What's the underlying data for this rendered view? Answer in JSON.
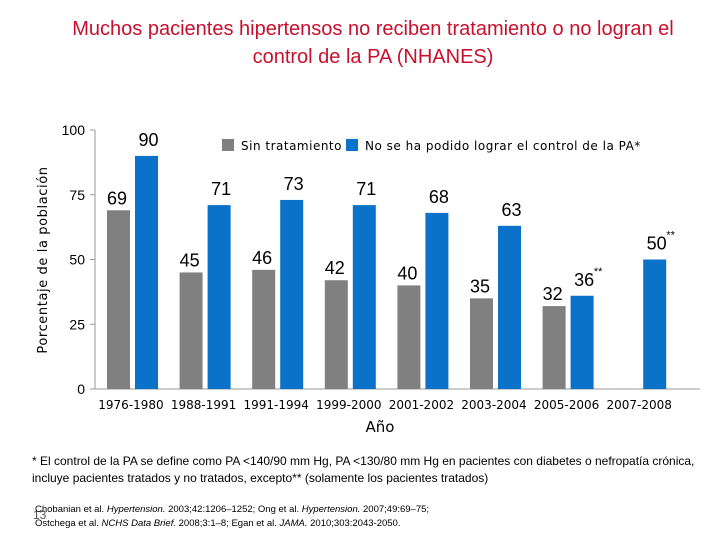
{
  "title": "Muchos pacientes hipertensos no reciben tratamiento o no logran el control de la PA (NHANES)",
  "footnote": "* El control de la PA se define como PA <140/90 mm Hg, PA <130/80 mm Hg en pacientes con diabetes o nefropatía crónica, incluye pacientes tratados y no tratados, excepto** (solamente los pacientes tratados)",
  "references": {
    "r1_authors": "Chobanian et al. ",
    "r1_journal": "Hypertension.",
    "r1_rest": " 2003;42:1206–1252; Ong et al. ",
    "r2_journal": "Hypertension.",
    "r2_rest": " 2007;49:69–75;",
    "r3_authors": "Ostchega et al. ",
    "r3_journal": "NCHS Data Brief.",
    "r3_rest": " 2008;3:1–8; Egan et al. ",
    "r4_journal": "JAMA.",
    "r4_rest": " 2010;303:2043-2050."
  },
  "slide_number": "13",
  "chart_data": {
    "type": "bar",
    "ylabel": "Porcentaje de la población",
    "xlabel": "Año",
    "ylim": [
      0,
      100
    ],
    "yticks": [
      0,
      25,
      50,
      75,
      100
    ],
    "categories": [
      "1976-1980",
      "1988-1991",
      "1991-1994",
      "1999-2000",
      "2001-2002",
      "2003-2004",
      "2005-2006",
      "2007-2008"
    ],
    "series": [
      {
        "name": "Sin tratamiento",
        "color": "#808080",
        "values": [
          69,
          45,
          46,
          42,
          40,
          35,
          32,
          null
        ],
        "labels": [
          "69",
          "45",
          "46",
          "42",
          "40",
          "35",
          "32",
          ""
        ]
      },
      {
        "name": "No se ha podido lograr el control de la PA*",
        "color": "#0a73c9",
        "values": [
          90,
          71,
          73,
          71,
          68,
          63,
          36,
          50
        ],
        "labels": [
          "90",
          "71",
          "73",
          "71",
          "68",
          "63",
          "36",
          "50"
        ]
      }
    ],
    "annotations": [
      {
        "category": "2005-2006",
        "series": 1,
        "text": "**"
      },
      {
        "category": "2007-2008",
        "series": 1,
        "text": "**"
      }
    ],
    "legend_position": "top",
    "grid": false
  }
}
